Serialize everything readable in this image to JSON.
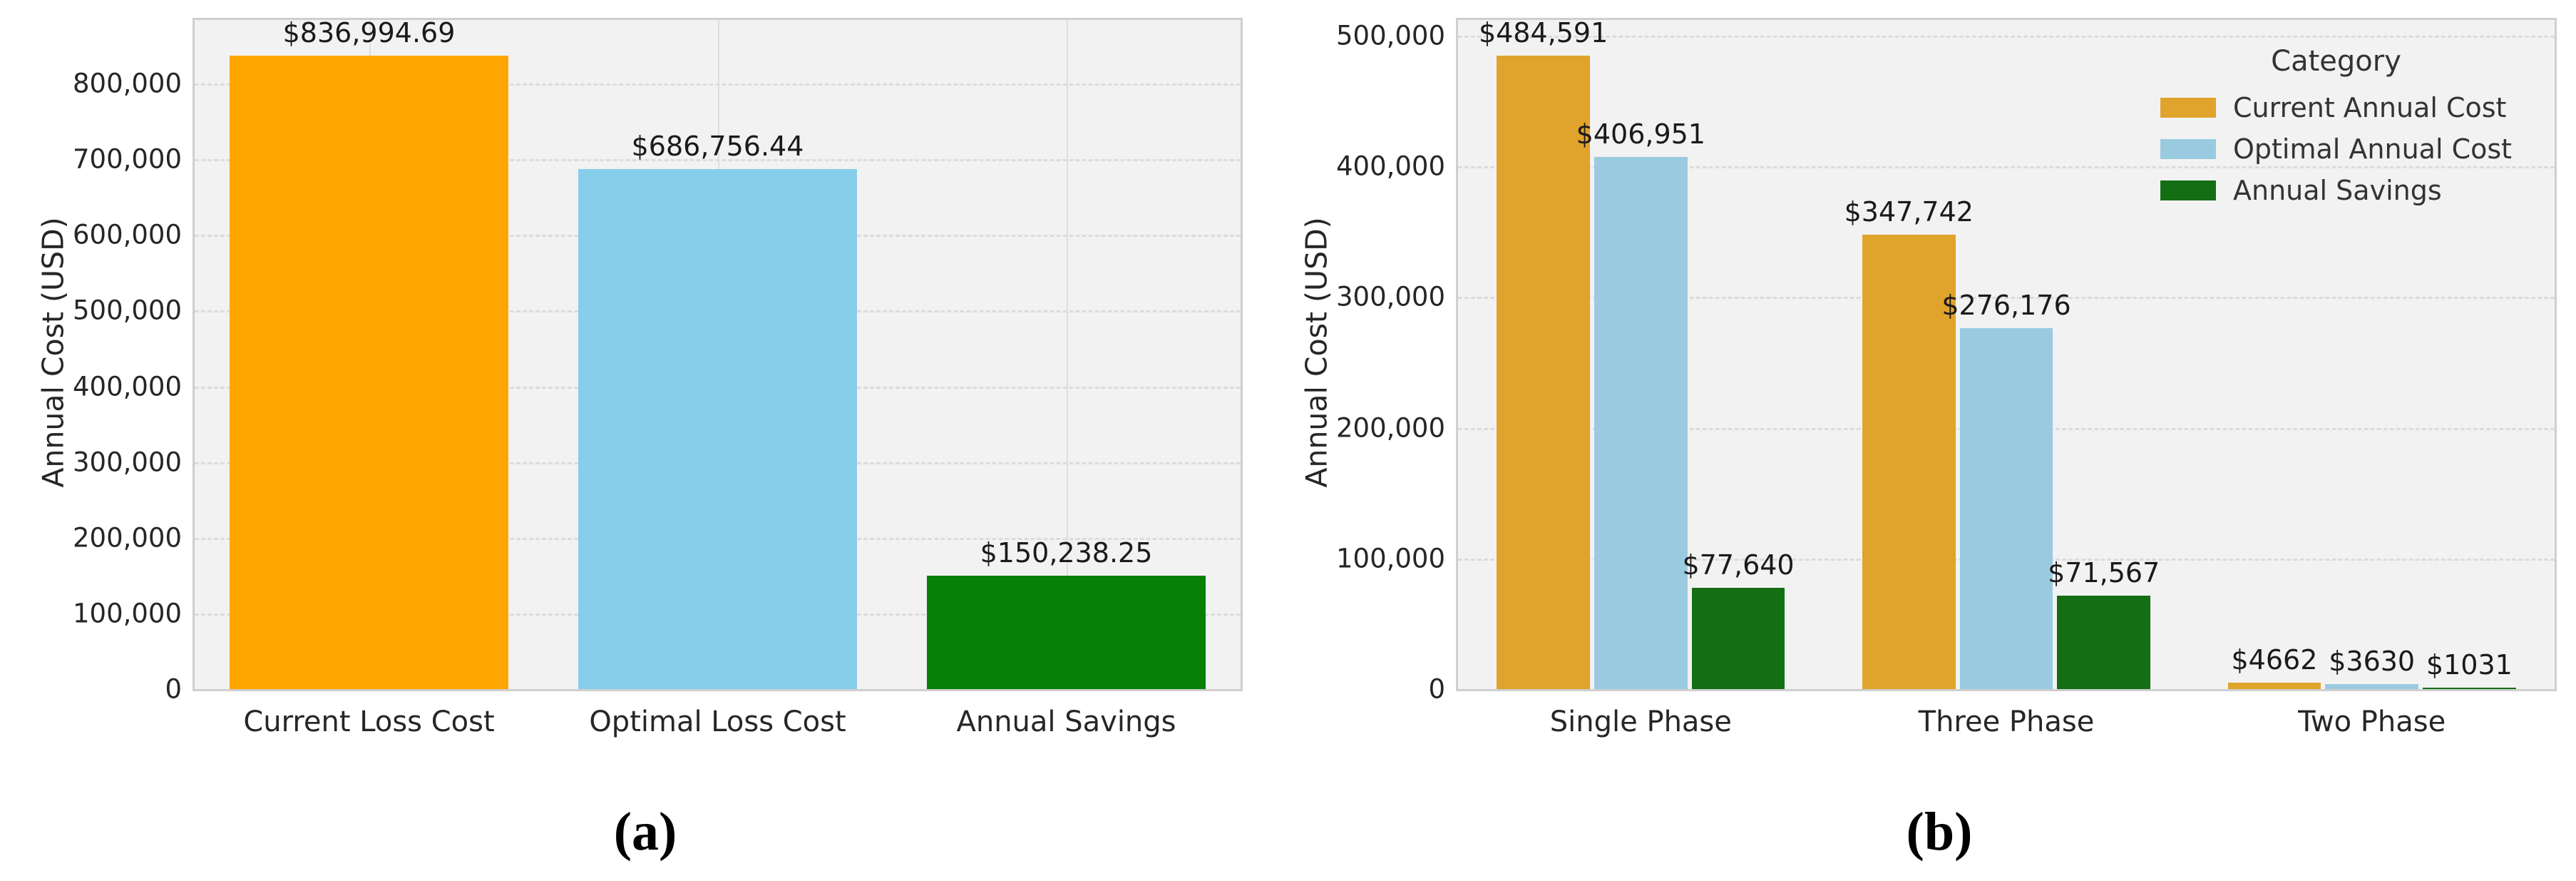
{
  "page": {
    "background": "#ffffff",
    "plot_background": "#f2f2f2",
    "grid_color": "#dcdcdc",
    "axis_border_color": "#cfcfcf"
  },
  "chart_data": [
    {
      "panel": "a",
      "type": "bar",
      "caption": "(a)",
      "title": "",
      "xlabel": "",
      "ylabel": "Annual Cost (USD)",
      "categories": [
        "Current Loss Cost",
        "Optimal Loss Cost",
        "Annual Savings"
      ],
      "values": [
        836994.69,
        686756.44,
        150238.25
      ],
      "bar_labels": [
        "$836,994.69",
        "$686,756.44",
        "$150,238.25"
      ],
      "bar_colors": [
        "#ffa500",
        "#87ceeb",
        "#068006"
      ],
      "ylim": [
        0,
        884000
      ],
      "yticks": [
        0,
        100000,
        200000,
        300000,
        400000,
        500000,
        600000,
        700000,
        800000
      ],
      "ytick_labels": [
        "0",
        "100,000",
        "200,000",
        "300,000",
        "400,000",
        "500,000",
        "600,000",
        "700,000",
        "800,000"
      ],
      "grid": "horizontal dashed gridlines and vertical category gridlines",
      "legend_position": "none"
    },
    {
      "panel": "b",
      "type": "bar",
      "caption": "(b)",
      "title": "",
      "xlabel": "",
      "ylabel": "Annual Cost (USD)",
      "categories": [
        "Single Phase",
        "Three Phase",
        "Two Phase"
      ],
      "series": [
        {
          "name": "Current Annual Cost",
          "color": "#e0a32c",
          "values": [
            484591,
            347742,
            4662
          ],
          "labels": [
            "$484,591",
            "$347,742",
            "$4662"
          ]
        },
        {
          "name": "Optimal Annual Cost",
          "color": "#9acae0",
          "values": [
            406951,
            276176,
            3630
          ],
          "labels": [
            "$406,951",
            "$276,176",
            "$3630"
          ]
        },
        {
          "name": "Annual Savings",
          "color": "#146e14",
          "values": [
            77640,
            71567,
            1031
          ],
          "labels": [
            "$77,640",
            "$71,567",
            "$1031"
          ]
        }
      ],
      "legend": {
        "title": "Category",
        "position": "upper right"
      },
      "ylim": [
        0,
        512000
      ],
      "yticks": [
        0,
        100000,
        200000,
        300000,
        400000,
        500000
      ],
      "ytick_labels": [
        "0",
        "100,000",
        "200,000",
        "300,000",
        "400,000",
        "500,000"
      ],
      "grid": "horizontal dashed gridlines",
      "legend_position": "upper right"
    }
  ]
}
